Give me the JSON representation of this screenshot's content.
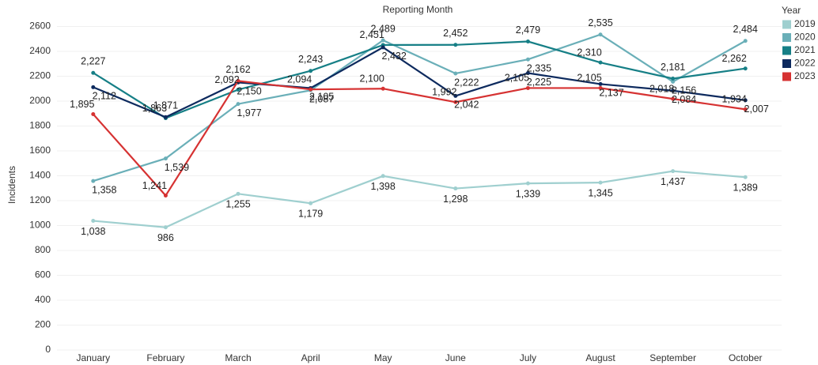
{
  "chart_data": {
    "type": "line",
    "title": "Reporting Month",
    "y_label": "Incidents",
    "legend_title": "Year",
    "categories": [
      "January",
      "February",
      "March",
      "April",
      "May",
      "June",
      "July",
      "August",
      "September",
      "October"
    ],
    "ylim": [
      0,
      2650
    ],
    "yticks": [
      0,
      200,
      400,
      600,
      800,
      1000,
      1200,
      1400,
      1600,
      1800,
      2000,
      2200,
      2400,
      2600
    ],
    "grid": true,
    "legend": "right",
    "series": [
      {
        "name": "2019",
        "color": "#9fcfcf",
        "values": [
          1038,
          986,
          1255,
          1179,
          1398,
          1298,
          1339,
          1345,
          1437,
          1389
        ],
        "value_labels": [
          "1,038",
          "986",
          "1,255",
          "1,179",
          "1,398",
          "1,298",
          "1,339",
          "1,345",
          "1,437",
          "1,389"
        ]
      },
      {
        "name": "2020",
        "color": "#6aafb8",
        "values": [
          1358,
          1539,
          1977,
          2087,
          2489,
          2222,
          2335,
          2535,
          2156,
          2484
        ],
        "value_labels": [
          "1,358",
          "1,539",
          "1,977",
          "2,087",
          "2,489",
          "2,222",
          "2,335",
          "2,535",
          "2,156",
          "2,484"
        ]
      },
      {
        "name": "2021",
        "color": "#167f86",
        "values": [
          2227,
          1863,
          2092,
          2243,
          2451,
          2452,
          2479,
          2310,
          2181,
          2262
        ],
        "value_labels": [
          "2,227",
          "1,863",
          "2,092",
          "2,243",
          "2,451",
          "2,452",
          "2,479",
          "2,310",
          "2,181",
          "2,262"
        ]
      },
      {
        "name": "2022",
        "color": "#0d2a5e",
        "values": [
          2112,
          1871,
          2150,
          2105,
          2432,
          2042,
          2225,
          2137,
          2084,
          2007
        ],
        "value_labels": [
          "2,112",
          "1,871",
          "2,150",
          "2,105",
          "2,432",
          "2,042",
          "2,225",
          "2,137",
          "2,084",
          "2,007"
        ]
      },
      {
        "name": "2023",
        "color": "#d63232",
        "values": [
          1895,
          1241,
          2162,
          2094,
          2100,
          1992,
          2105,
          2105,
          2018,
          1934
        ],
        "value_labels": [
          "1,895",
          "1,241",
          "2,162",
          "2,094",
          "2,100",
          "1,992",
          "2,105",
          "2,105",
          "2,018",
          "1,934"
        ]
      }
    ]
  }
}
